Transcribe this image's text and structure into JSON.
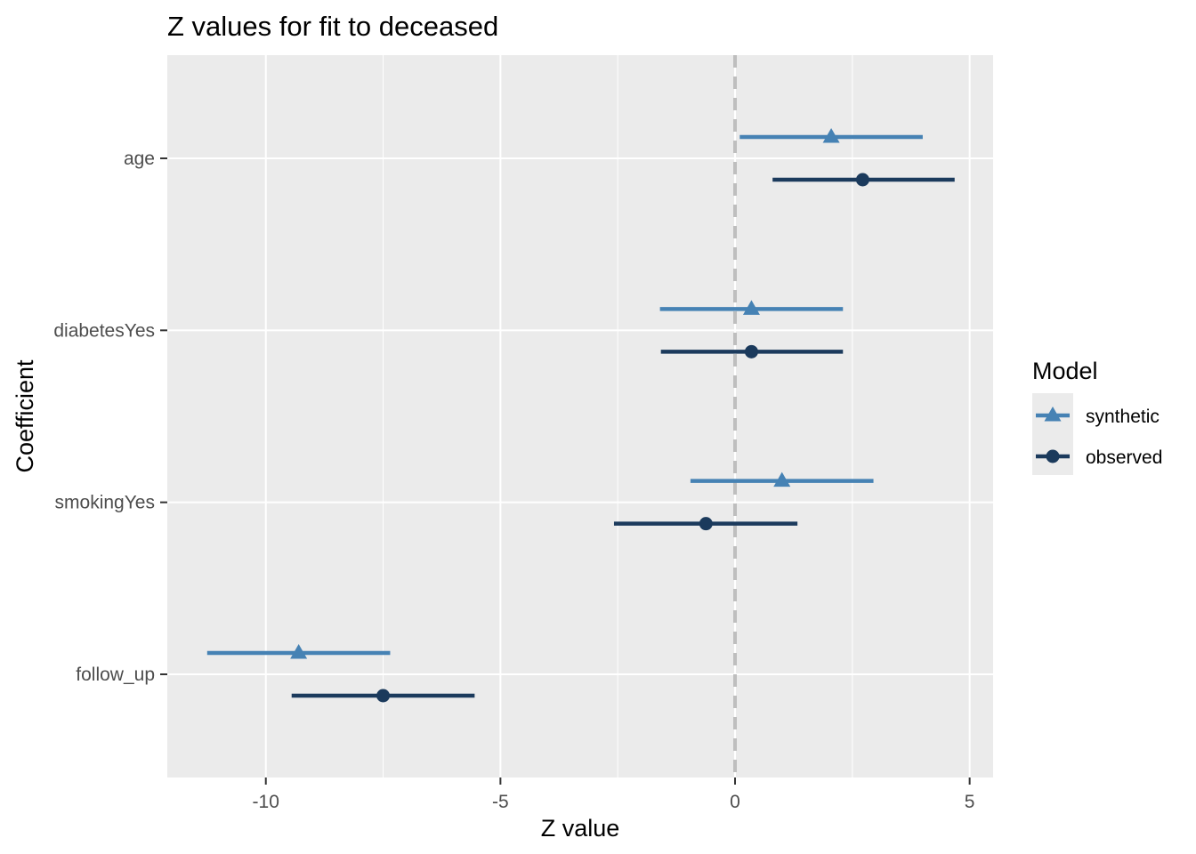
{
  "chart_data": {
    "type": "coefficient-interval",
    "title": "Z values for fit to deceased",
    "xlabel": "Z value",
    "ylabel": "Coefficient",
    "xlim": [
      -12.1,
      5.5
    ],
    "x_ticks": [
      -10,
      -5,
      0,
      5
    ],
    "x_tick_labels": [
      "-10",
      "-5",
      "0",
      "5"
    ],
    "categories": [
      "age",
      "diabetesYes",
      "smokingYes",
      "follow_up"
    ],
    "reference_line": 0,
    "grid": true,
    "legend": {
      "title": "Model",
      "position": "right"
    },
    "series": [
      {
        "name": "synthetic",
        "color": "#4682B4",
        "marker": "triangle",
        "points": [
          {
            "category": "age",
            "estimate": 2.05,
            "low": 0.1,
            "high": 4.0
          },
          {
            "category": "diabetesYes",
            "estimate": 0.35,
            "low": -1.6,
            "high": 2.3
          },
          {
            "category": "smokingYes",
            "estimate": 1.0,
            "low": -0.95,
            "high": 2.95
          },
          {
            "category": "follow_up",
            "estimate": -9.3,
            "low": -11.25,
            "high": -7.35
          }
        ]
      },
      {
        "name": "observed",
        "color": "#1B3A5C",
        "marker": "circle",
        "points": [
          {
            "category": "age",
            "estimate": 2.72,
            "low": 0.8,
            "high": 4.68
          },
          {
            "category": "diabetesYes",
            "estimate": 0.35,
            "low": -1.58,
            "high": 2.3
          },
          {
            "category": "smokingYes",
            "estimate": -0.62,
            "low": -2.58,
            "high": 1.33
          },
          {
            "category": "follow_up",
            "estimate": -7.5,
            "low": -9.45,
            "high": -5.55
          }
        ]
      }
    ]
  }
}
